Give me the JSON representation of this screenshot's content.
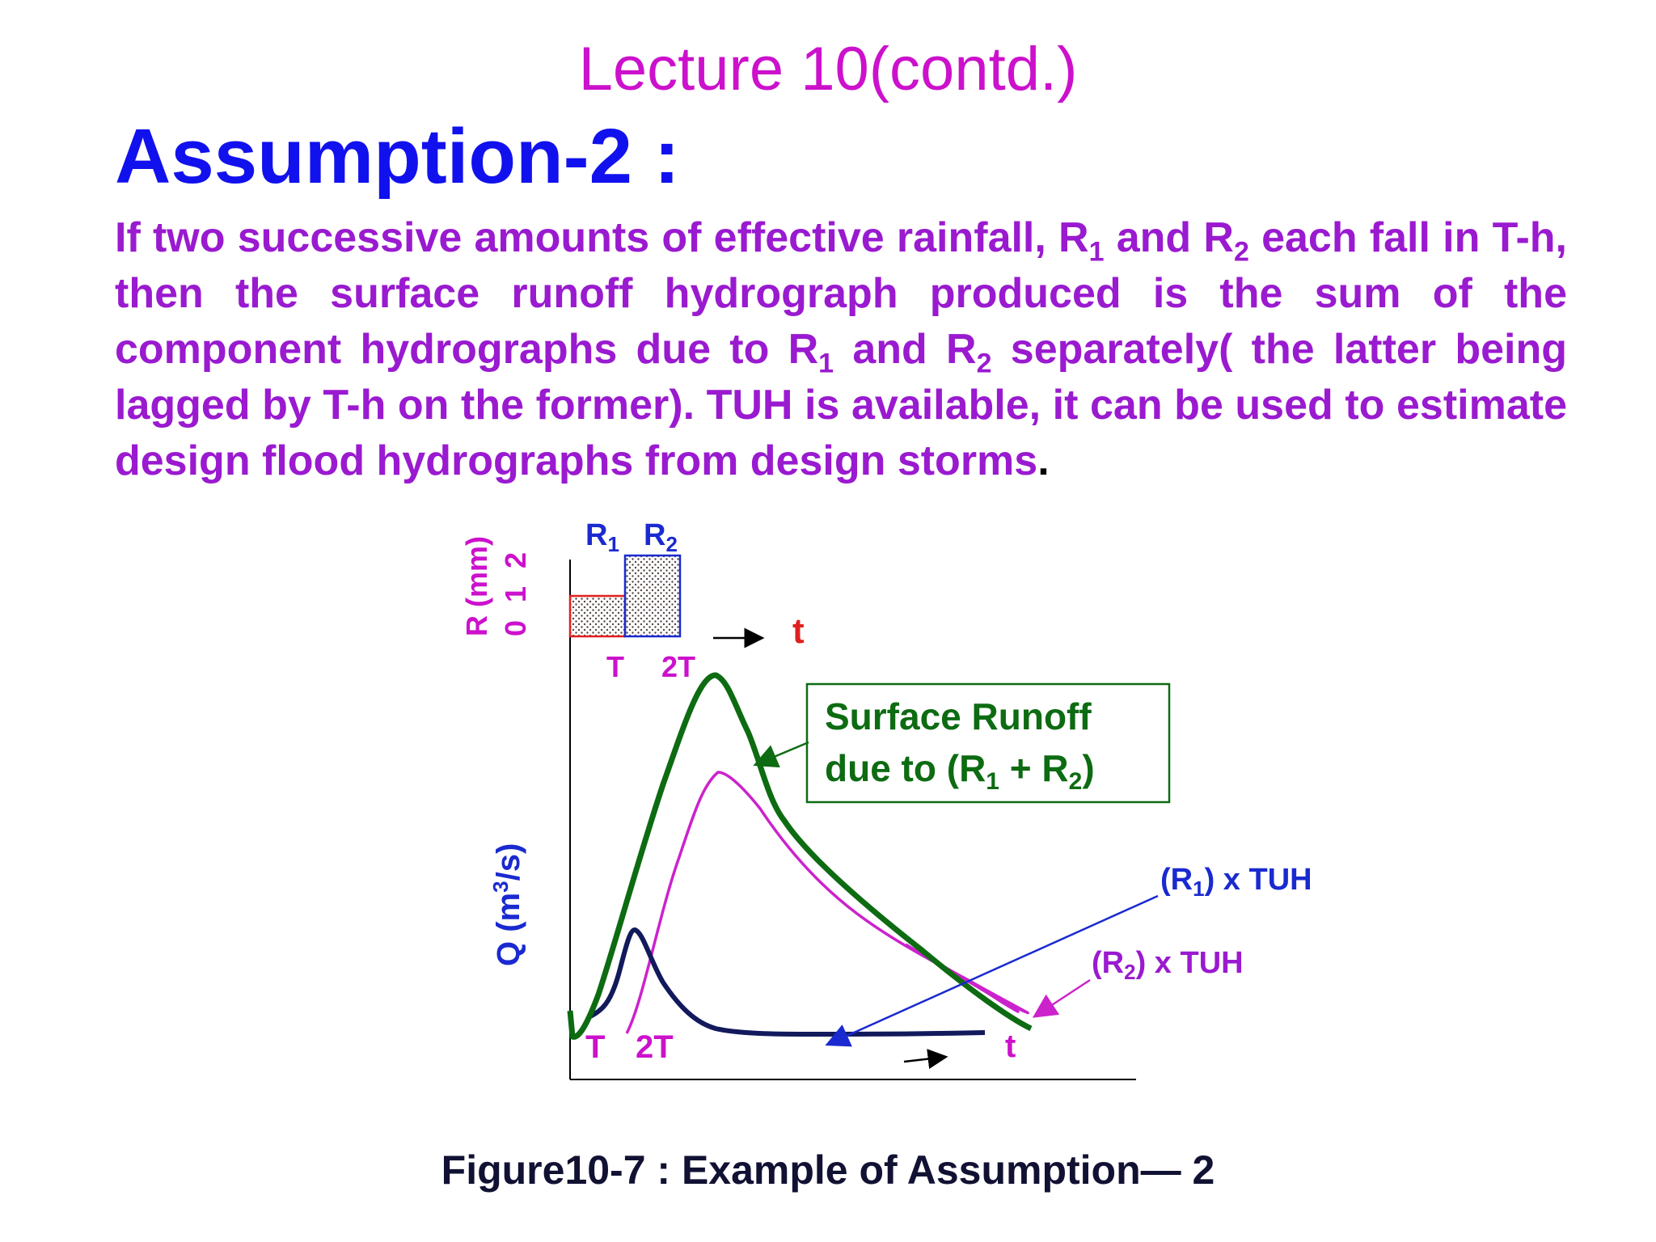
{
  "slide": {
    "title": "Lecture 10(contd.)",
    "heading": "Assumption-2 :",
    "body": {
      "p1": "If two successive amounts of effective rainfall, R",
      "sub1": "1",
      "p2": " and R",
      "sub2": "2",
      "p3": " each fall in T-h, then the surface  runoff hydrograph produced is the sum of the component hydrographs due to R",
      "sub3": "1",
      "p4": " and R",
      "sub4": "2",
      "p5": " separately( the latter being lagged by T-h on the former). TUH is available, it can be used to estimate design flood hydrographs from design storms",
      "end": "."
    }
  },
  "figure": {
    "rain_axis_label": "R (mm)",
    "rain_ticks": "0 1 2",
    "rain_block1": {
      "label": "R",
      "sub": "1",
      "depth": 1
    },
    "rain_block2": {
      "label": "R",
      "sub": "2",
      "depth": 2
    },
    "rain_time_label": "t",
    "rain_ticks_x": [
      "T",
      "2T"
    ],
    "q_axis_label": {
      "prefix": "Q  (m",
      "sup": "3",
      "suffix": "/s)"
    },
    "hydro_ticks_x": [
      "T",
      "2T"
    ],
    "hydro_time_label": "t",
    "callout": {
      "line1": "Surface Runoff",
      "line2_prefix": "due to (R",
      "line2_sub1": "1",
      "line2_mid": " + R",
      "line2_sub2": "2",
      "line2_suffix": ")"
    },
    "label_r1": {
      "prefix": "(R",
      "sub": "1",
      "suffix": ")  x TUH"
    },
    "label_r2": {
      "prefix": "(R",
      "sub": "2",
      "suffix": ") x TUH"
    },
    "colors": {
      "total": "#0d6b12",
      "r1": "#121a5c",
      "r2": "#cc22cc",
      "rain1": "#e02020",
      "rain2": "#1a2ad0",
      "arrow_blue": "#1a2ad0",
      "axis_label_rain": "#cc11cc",
      "axis_label_q": "#1a2ad0",
      "t_red": "#e02020"
    }
  },
  "caption": "Figure10-7 : Example of Assumption— 2"
}
